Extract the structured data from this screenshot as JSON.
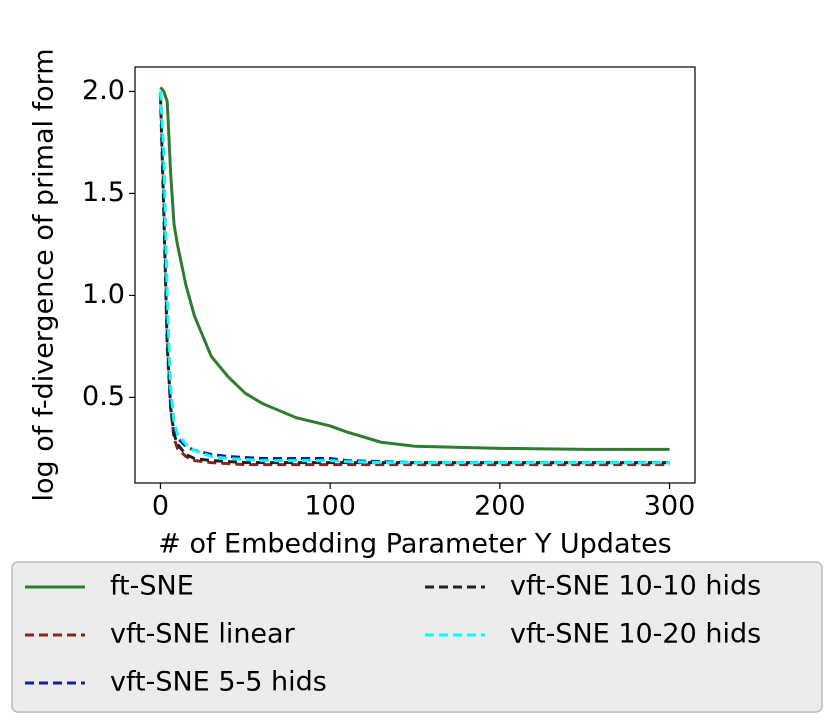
{
  "chart_data": {
    "type": "line",
    "xlabel": "# of Embedding Parameter Y Updates",
    "ylabel": "log of f-divergence of primal form",
    "x": [
      0,
      2,
      4,
      6,
      8,
      10,
      15,
      20,
      30,
      40,
      50,
      60,
      80,
      100,
      110,
      130,
      150,
      200,
      250,
      300
    ],
    "series": [
      {
        "name": "ft-SNE",
        "color": "#2e7d2e",
        "dash": false,
        "values": [
          2.02,
          2.0,
          1.95,
          1.6,
          1.35,
          1.25,
          1.05,
          0.9,
          0.7,
          0.6,
          0.52,
          0.47,
          0.4,
          0.36,
          0.33,
          0.28,
          0.26,
          0.25,
          0.245,
          0.245
        ]
      },
      {
        "name": "vft-SNE linear",
        "color": "#8b2323",
        "dash": true,
        "values": [
          2.0,
          1.5,
          0.8,
          0.45,
          0.3,
          0.25,
          0.21,
          0.19,
          0.18,
          0.175,
          0.17,
          0.17,
          0.17,
          0.17,
          0.17,
          0.17,
          0.17,
          0.17,
          0.17,
          0.17
        ]
      },
      {
        "name": "vft-SNE 5-5 hids",
        "color": "#1c1c9c",
        "dash": true,
        "values": [
          2.0,
          1.6,
          0.9,
          0.5,
          0.35,
          0.3,
          0.26,
          0.24,
          0.22,
          0.21,
          0.205,
          0.2,
          0.2,
          0.2,
          0.19,
          0.185,
          0.18,
          0.18,
          0.18,
          0.18
        ]
      },
      {
        "name": "vft-SNE 10-10 hids",
        "color": "#222222",
        "dash": true,
        "values": [
          1.98,
          1.4,
          0.75,
          0.45,
          0.32,
          0.27,
          0.22,
          0.2,
          0.19,
          0.185,
          0.18,
          0.18,
          0.18,
          0.18,
          0.18,
          0.18,
          0.18,
          0.18,
          0.18,
          0.18
        ]
      },
      {
        "name": "vft-SNE 10-20 hids",
        "color": "#00ffff",
        "dash": true,
        "values": [
          2.0,
          1.7,
          1.0,
          0.55,
          0.38,
          0.32,
          0.27,
          0.24,
          0.21,
          0.2,
          0.195,
          0.19,
          0.19,
          0.19,
          0.185,
          0.18,
          0.18,
          0.18,
          0.18,
          0.18
        ]
      }
    ],
    "xlim": [
      -15,
      315
    ],
    "xticks": [
      0,
      100,
      200,
      300
    ],
    "ylim": [
      0.08,
      2.12
    ],
    "yticks": [
      {
        "value": 0.5,
        "label": "0.5"
      },
      {
        "value": 1.0,
        "label": "1.0"
      },
      {
        "value": 1.5,
        "label": "1.5"
      },
      {
        "value": 2.0,
        "label": "2.0"
      }
    ],
    "grid": false,
    "legend": "below"
  }
}
